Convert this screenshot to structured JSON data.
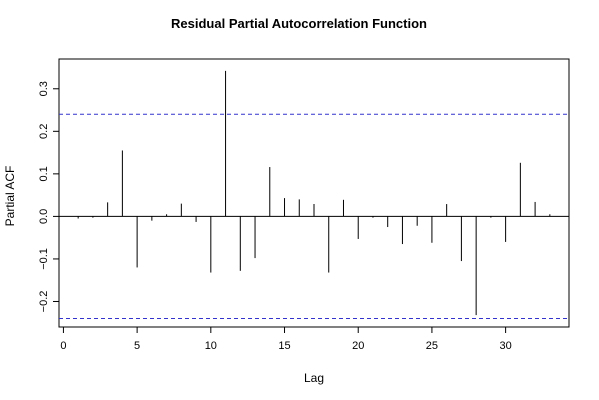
{
  "chart_data": {
    "type": "bar",
    "title": "Residual Partial Autocorrelation Function",
    "xlabel": "Lag",
    "ylabel": "Partial ACF",
    "xlim": [
      -0.3,
      34.3
    ],
    "ylim": [
      -0.26,
      0.37
    ],
    "xticks": [
      0,
      5,
      10,
      15,
      20,
      25,
      30
    ],
    "yticks": [
      -0.2,
      -0.1,
      0.0,
      0.1,
      0.2,
      0.3
    ],
    "ytick_labels": [
      "−0.2",
      "−0.1",
      "0.0",
      "0.1",
      "0.2",
      "0.3"
    ],
    "confidence_bounds": [
      0.24,
      -0.24
    ],
    "confidence_color": "#3333cc",
    "grid": false,
    "lags": [
      1,
      2,
      3,
      4,
      5,
      6,
      7,
      8,
      9,
      10,
      11,
      12,
      13,
      14,
      15,
      16,
      17,
      18,
      19,
      20,
      21,
      22,
      23,
      24,
      25,
      26,
      27,
      28,
      29,
      30,
      31,
      32,
      33
    ],
    "values": [
      -0.005,
      -0.003,
      0.033,
      0.155,
      -0.12,
      -0.01,
      0.005,
      0.03,
      -0.013,
      -0.132,
      0.342,
      -0.128,
      -0.098,
      0.116,
      0.043,
      0.04,
      0.029,
      -0.132,
      0.039,
      -0.053,
      -0.003,
      -0.025,
      -0.065,
      -0.022,
      -0.062,
      0.029,
      -0.105,
      -0.232,
      -0.003,
      -0.06,
      0.126,
      0.034,
      0.005
    ]
  }
}
